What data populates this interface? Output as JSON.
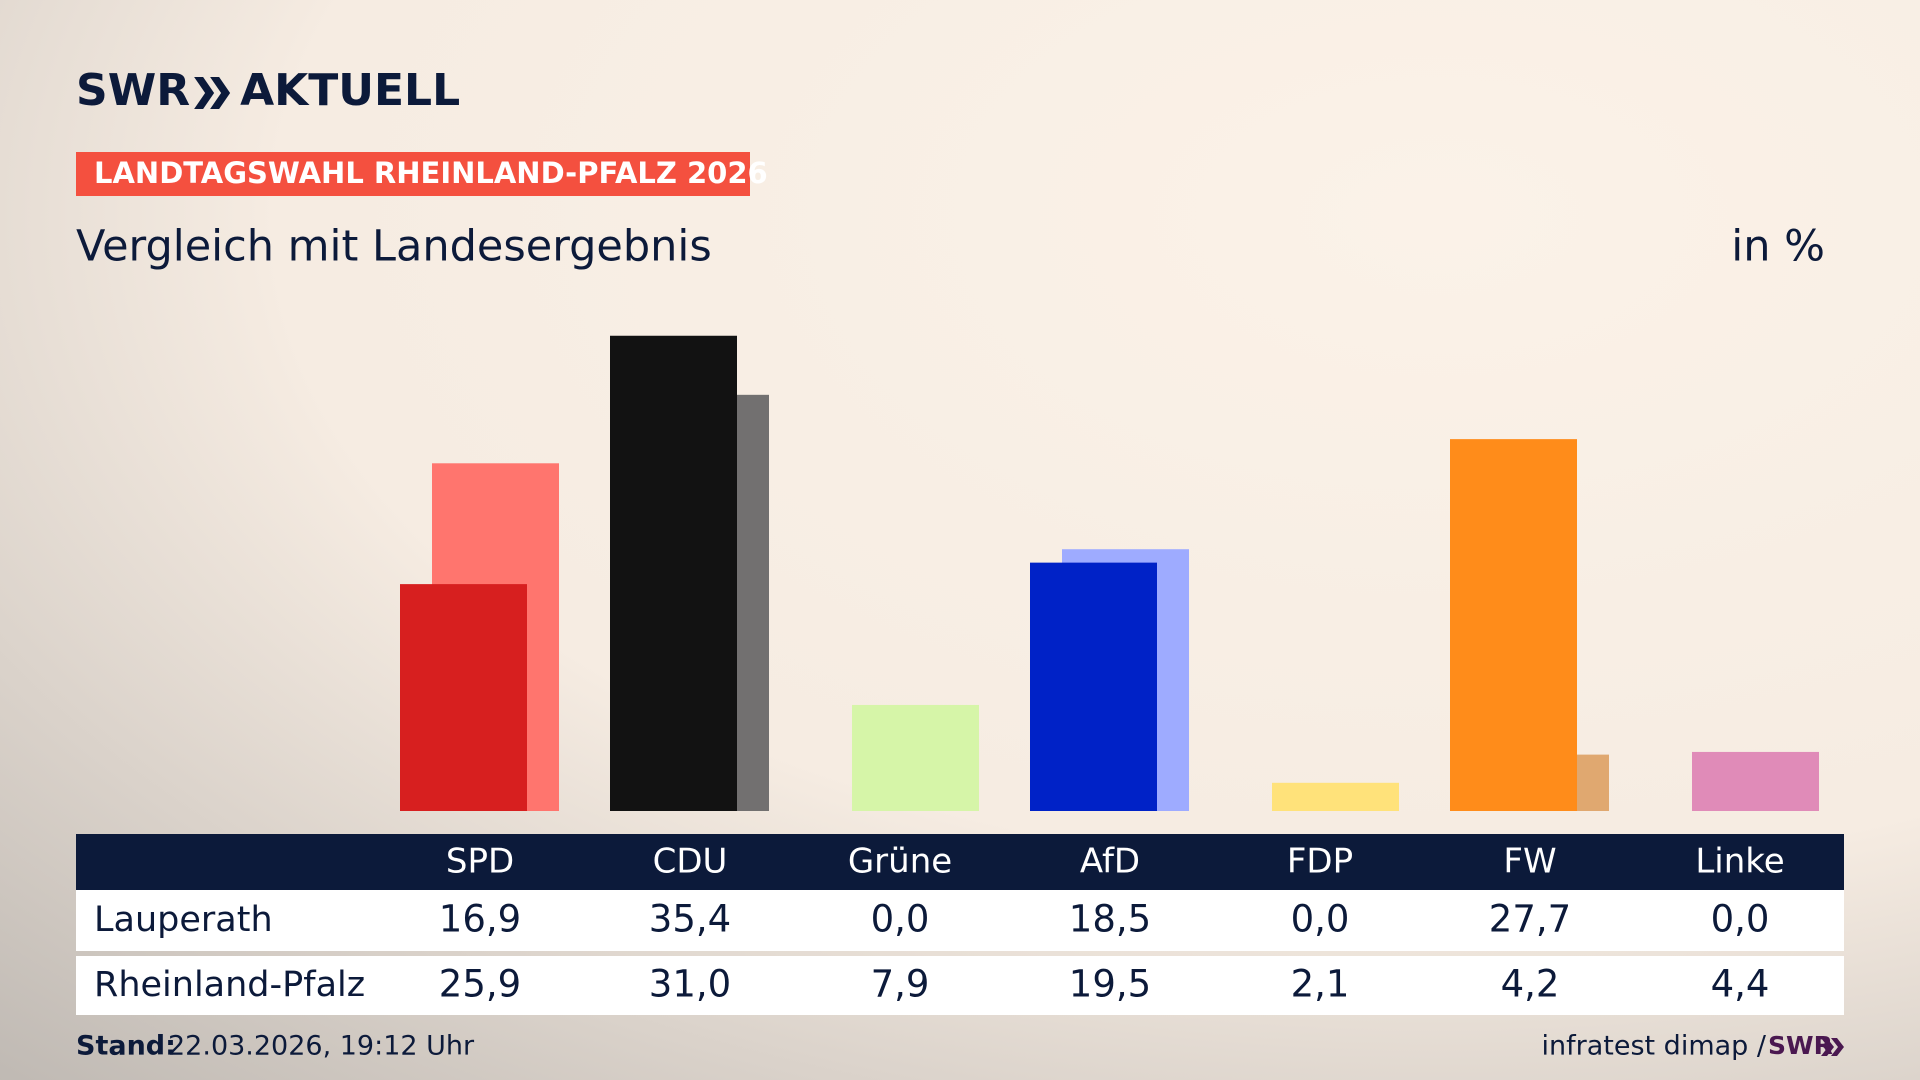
{
  "header": {
    "logo": "SWR",
    "brand": "AKTUELL",
    "badge": "LANDTAGSWAHL RHEINLAND-PFALZ 2026"
  },
  "chart_data": {
    "type": "bar",
    "title": "Vergleich mit Landesergebnis",
    "unit": "in %",
    "categories": [
      "SPD",
      "CDU",
      "Grüne",
      "AfD",
      "FDP",
      "FW",
      "Linke"
    ],
    "ylim": [
      0,
      40
    ],
    "series": [
      {
        "name": "Lauperath",
        "colors": [
          "#d71f1f",
          "#121212",
          "#46962b",
          "#0022c7",
          "#ffd600",
          "#ff8c1a",
          "#be3075"
        ],
        "values": [
          16.9,
          35.4,
          0.0,
          18.5,
          0.0,
          27.7,
          0.0
        ],
        "value_labels": [
          "16,9",
          "35,4",
          "0,0",
          "18,5",
          "0,0",
          "27,7",
          "0,0"
        ]
      },
      {
        "name": "Rheinland-Pfalz",
        "colors": [
          "#ff756e",
          "#727070",
          "#d6f5a8",
          "#9eabff",
          "#ffe27a",
          "#e0a870",
          "#e08bb8"
        ],
        "values": [
          25.9,
          31.0,
          7.9,
          19.5,
          2.1,
          4.2,
          4.4
        ],
        "value_labels": [
          "25,9",
          "31,0",
          "7,9",
          "19,5",
          "2,1",
          "4,2",
          "4,4"
        ]
      }
    ]
  },
  "footer": {
    "stand_label": "Stand:",
    "stand": "22.03.2026, 19:12 Uhr",
    "source": "infratest dimap /",
    "logo": "SWR"
  }
}
